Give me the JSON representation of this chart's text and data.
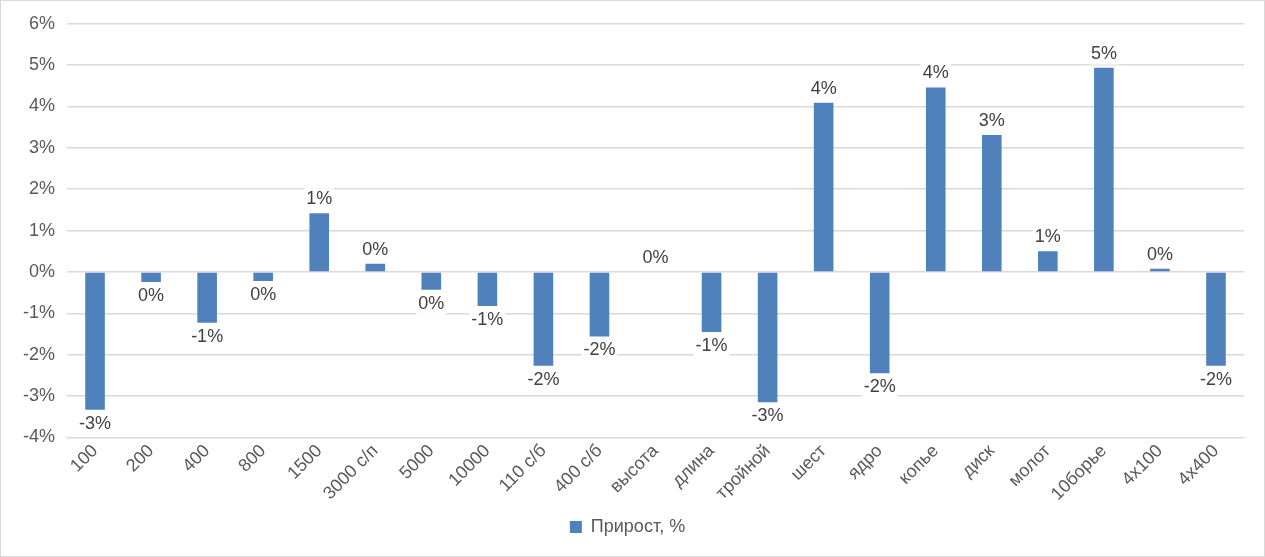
{
  "chart_data": {
    "type": "bar",
    "categories": [
      "100",
      "200",
      "400",
      "800",
      "1500",
      "3000 с/п",
      "5000",
      "10000",
      "110 с/б",
      "400 с/б",
      "высота",
      "длина",
      "тройной",
      "шест",
      "ядро",
      "копье",
      "диск",
      "молот",
      "10борье",
      "4х100",
      "4х400"
    ],
    "series": [
      {
        "name": "Прирост, %",
        "color": "#4f81bd",
        "values": [
          -3.33,
          -0.24,
          -1.23,
          -0.22,
          1.42,
          0.2,
          -0.43,
          -0.82,
          -2.27,
          -1.56,
          0,
          -1.45,
          -3.15,
          4.09,
          -2.45,
          4.46,
          3.31,
          0.5,
          4.94,
          0.08,
          -2.27
        ],
        "value_labels": [
          "-3%",
          "0%",
          "-1%",
          "0%",
          "1%",
          "0%",
          "0%",
          "-1%",
          "-2%",
          "-2%",
          "0%",
          "-1%",
          "-3%",
          "4%",
          "-2%",
          "4%",
          "3%",
          "1%",
          "5%",
          "0%",
          "-2%"
        ]
      }
    ],
    "ylim": [
      -4,
      6
    ],
    "yticks": [
      {
        "value": -4,
        "label": "-4%"
      },
      {
        "value": -3,
        "label": "-3%"
      },
      {
        "value": -2,
        "label": "-2%"
      },
      {
        "value": -1,
        "label": "-1%"
      },
      {
        "value": 0,
        "label": "0%"
      },
      {
        "value": 1,
        "label": "1%"
      },
      {
        "value": 2,
        "label": "2%"
      },
      {
        "value": 3,
        "label": "3%"
      },
      {
        "value": 4,
        "label": "4%"
      },
      {
        "value": 5,
        "label": "5%"
      },
      {
        "value": 6,
        "label": "6%"
      }
    ],
    "grid": "y",
    "legend": "bottom"
  }
}
